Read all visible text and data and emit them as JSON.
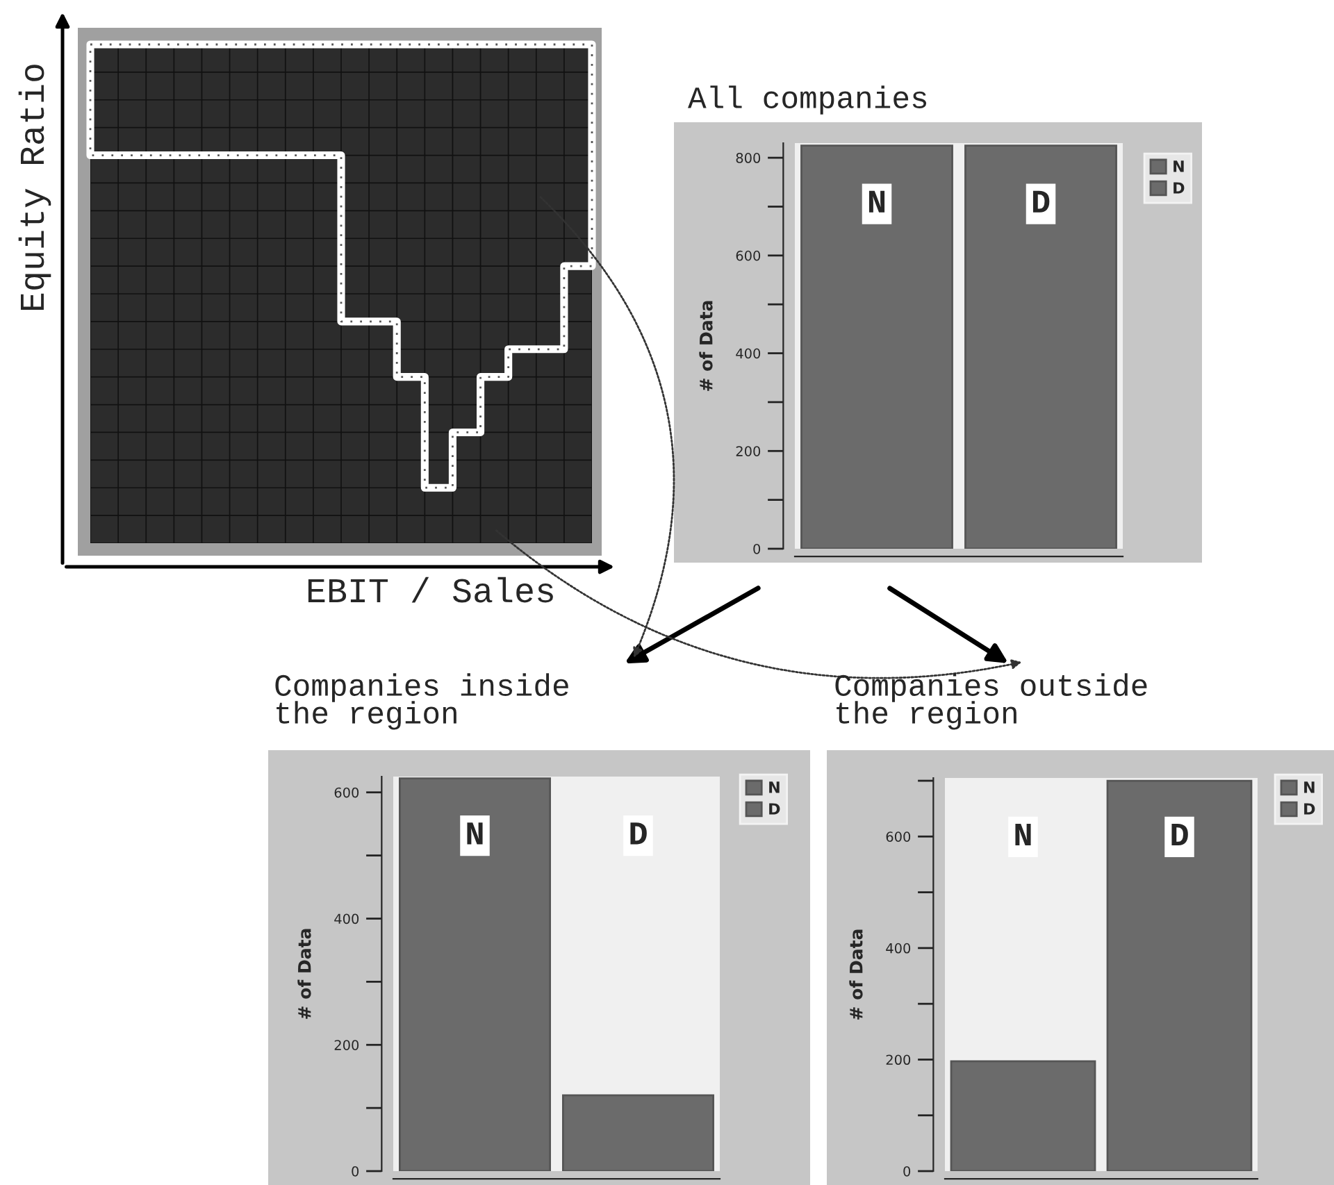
{
  "chart_data": [
    {
      "type": "other",
      "xlabel": "EBIT / Sales",
      "ylabel": "Equity Ratio"
    },
    {
      "type": "bar",
      "title": "All companies",
      "ylabel": "# of Data",
      "categories": [
        "N",
        "D"
      ],
      "series": [
        {
          "name": "N",
          "color": "#6b6b6b",
          "values": [
            825,
            null
          ]
        },
        {
          "name": "D",
          "color": "#6b6b6b",
          "values": [
            null,
            825
          ]
        }
      ],
      "ylim": [
        0,
        830
      ],
      "yticks": [
        0,
        {
          "value": 100,
          "label": null
        },
        200,
        {
          "value": 300,
          "label": null
        },
        400,
        {
          "value": 500,
          "label": null
        },
        600,
        {
          "value": 700,
          "label": null
        },
        800
      ],
      "tick_labels": "y",
      "legend": "top right"
    },
    {
      "type": "bar",
      "title": "Companies inside\nthe region",
      "ylabel": "# of Data",
      "categories": [
        "N",
        "D"
      ],
      "series": [
        {
          "name": "N",
          "color": "#6b6b6b",
          "values": [
            622,
            null
          ]
        },
        {
          "name": "D",
          "color": "#6b6b6b",
          "values": [
            null,
            120
          ]
        }
      ],
      "ylim": [
        0,
        625
      ],
      "yticks": [
        0,
        {
          "value": 100,
          "label": null
        },
        200,
        {
          "value": 300,
          "label": null
        },
        400,
        {
          "value": 500,
          "label": null
        },
        600
      ],
      "tick_labels": "y",
      "legend": "top right"
    },
    {
      "type": "bar",
      "title": "Companies outside\nthe region",
      "ylabel": "# of Data",
      "categories": [
        "N",
        "D"
      ],
      "series": [
        {
          "name": "N",
          "color": "#6b6b6b",
          "values": [
            197,
            null
          ]
        },
        {
          "name": "D",
          "color": "#6b6b6b",
          "values": [
            null,
            700
          ]
        }
      ],
      "ylim": [
        0,
        705
      ],
      "yticks": [
        0,
        {
          "value": 100,
          "label": null
        },
        200,
        {
          "value": 300,
          "label": null
        },
        400,
        {
          "value": 500,
          "label": null
        },
        600,
        {
          "value": 700,
          "label": null
        }
      ],
      "tick_labels": "y",
      "legend": "top right"
    }
  ]
}
